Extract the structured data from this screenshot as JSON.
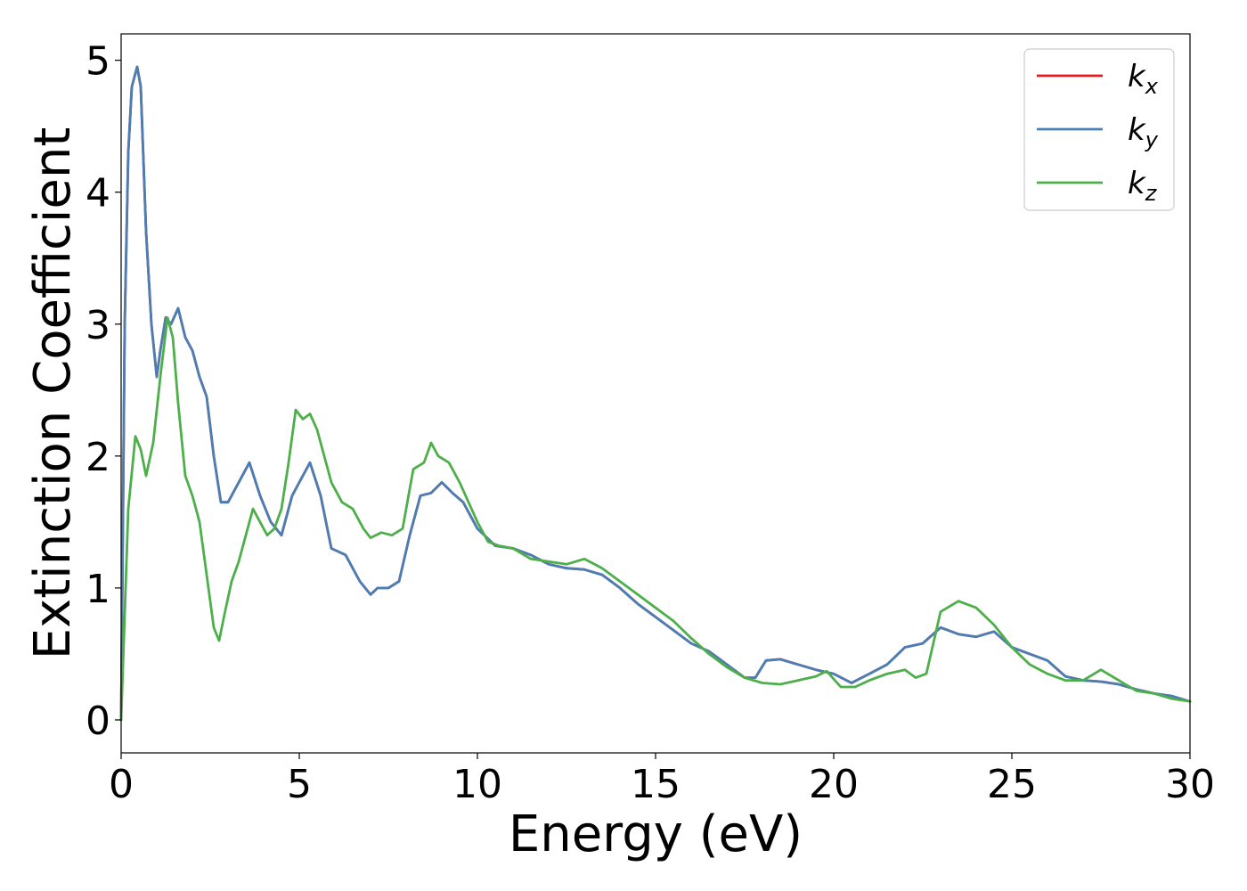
{
  "chart_data": {
    "type": "line",
    "xlabel": "Energy (eV)",
    "ylabel": "Extinction Coefficient",
    "xlim": [
      0,
      30
    ],
    "ylim": [
      -0.25,
      5.2
    ],
    "xticks": [
      0,
      5,
      10,
      15,
      20,
      25,
      30
    ],
    "xtick_labels": [
      "0",
      "5",
      "10",
      "15",
      "20",
      "25",
      "30"
    ],
    "yticks": [
      0,
      1,
      2,
      3,
      4,
      5
    ],
    "ytick_labels": [
      "0",
      "1",
      "2",
      "3",
      "4",
      "5"
    ],
    "grid": false,
    "legend": "top-right",
    "series": [
      {
        "name": "k_x",
        "label_main": "k",
        "label_sub": "x",
        "color": "#e41a1c",
        "x": [
          0,
          0.1,
          0.2,
          0.3,
          0.45,
          0.55,
          0.7,
          0.85,
          1.0,
          1.1,
          1.25,
          1.4,
          1.6,
          1.8,
          2.0,
          2.2,
          2.4,
          2.6,
          2.8,
          3.0,
          3.3,
          3.6,
          3.9,
          4.2,
          4.5,
          4.8,
          5.0,
          5.3,
          5.6,
          5.9,
          6.3,
          6.7,
          7.0,
          7.2,
          7.5,
          7.8,
          8.1,
          8.4,
          8.7,
          9.0,
          9.3,
          9.6,
          10.0,
          10.5,
          11.0,
          11.5,
          12.0,
          12.5,
          13.0,
          13.5,
          14.0,
          14.5,
          15.0,
          15.5,
          16.0,
          16.5,
          17.0,
          17.5,
          17.8,
          18.1,
          18.5,
          19.0,
          19.5,
          20.0,
          20.5,
          21.0,
          21.5,
          22.0,
          22.5,
          23.0,
          23.5,
          24.0,
          24.5,
          25.0,
          25.5,
          26.0,
          26.5,
          27.0,
          27.5,
          28.0,
          28.5,
          29.0,
          29.5,
          30.0
        ],
        "values": [
          0.0,
          3.0,
          4.3,
          4.8,
          4.95,
          4.8,
          3.7,
          3.0,
          2.6,
          2.8,
          3.05,
          3.0,
          3.12,
          2.9,
          2.8,
          2.6,
          2.45,
          2.0,
          1.65,
          1.65,
          1.8,
          1.95,
          1.7,
          1.5,
          1.4,
          1.7,
          1.8,
          1.95,
          1.7,
          1.3,
          1.25,
          1.05,
          0.95,
          1.0,
          1.0,
          1.05,
          1.4,
          1.7,
          1.72,
          1.8,
          1.72,
          1.65,
          1.45,
          1.32,
          1.3,
          1.25,
          1.18,
          1.15,
          1.14,
          1.1,
          1.0,
          0.88,
          0.78,
          0.68,
          0.58,
          0.52,
          0.42,
          0.32,
          0.32,
          0.45,
          0.46,
          0.42,
          0.38,
          0.35,
          0.28,
          0.35,
          0.42,
          0.55,
          0.58,
          0.7,
          0.65,
          0.63,
          0.67,
          0.55,
          0.5,
          0.45,
          0.33,
          0.3,
          0.29,
          0.27,
          0.23,
          0.2,
          0.18,
          0.14
        ]
      },
      {
        "name": "k_y",
        "label_main": "k",
        "label_sub": "y",
        "color": "#4a7fb5",
        "x": [
          0,
          0.1,
          0.2,
          0.3,
          0.45,
          0.55,
          0.7,
          0.85,
          1.0,
          1.1,
          1.25,
          1.4,
          1.6,
          1.8,
          2.0,
          2.2,
          2.4,
          2.6,
          2.8,
          3.0,
          3.3,
          3.6,
          3.9,
          4.2,
          4.5,
          4.8,
          5.0,
          5.3,
          5.6,
          5.9,
          6.3,
          6.7,
          7.0,
          7.2,
          7.5,
          7.8,
          8.1,
          8.4,
          8.7,
          9.0,
          9.3,
          9.6,
          10.0,
          10.5,
          11.0,
          11.5,
          12.0,
          12.5,
          13.0,
          13.5,
          14.0,
          14.5,
          15.0,
          15.5,
          16.0,
          16.5,
          17.0,
          17.5,
          17.8,
          18.1,
          18.5,
          19.0,
          19.5,
          20.0,
          20.5,
          21.0,
          21.5,
          22.0,
          22.5,
          23.0,
          23.5,
          24.0,
          24.5,
          25.0,
          25.5,
          26.0,
          26.5,
          27.0,
          27.5,
          28.0,
          28.5,
          29.0,
          29.5,
          30.0
        ],
        "values": [
          0.0,
          3.0,
          4.3,
          4.8,
          4.95,
          4.8,
          3.7,
          3.0,
          2.6,
          2.8,
          3.05,
          3.0,
          3.12,
          2.9,
          2.8,
          2.6,
          2.45,
          2.0,
          1.65,
          1.65,
          1.8,
          1.95,
          1.7,
          1.5,
          1.4,
          1.7,
          1.8,
          1.95,
          1.7,
          1.3,
          1.25,
          1.05,
          0.95,
          1.0,
          1.0,
          1.05,
          1.4,
          1.7,
          1.72,
          1.8,
          1.72,
          1.65,
          1.45,
          1.32,
          1.3,
          1.25,
          1.18,
          1.15,
          1.14,
          1.1,
          1.0,
          0.88,
          0.78,
          0.68,
          0.58,
          0.52,
          0.42,
          0.32,
          0.32,
          0.45,
          0.46,
          0.42,
          0.38,
          0.35,
          0.28,
          0.35,
          0.42,
          0.55,
          0.58,
          0.7,
          0.65,
          0.63,
          0.67,
          0.55,
          0.5,
          0.45,
          0.33,
          0.3,
          0.29,
          0.27,
          0.23,
          0.2,
          0.18,
          0.14
        ]
      },
      {
        "name": "k_z",
        "label_main": "k",
        "label_sub": "z",
        "color": "#4daf4a",
        "x": [
          0,
          0.2,
          0.4,
          0.55,
          0.7,
          0.9,
          1.1,
          1.3,
          1.45,
          1.6,
          1.8,
          2.0,
          2.2,
          2.4,
          2.6,
          2.75,
          2.9,
          3.1,
          3.3,
          3.5,
          3.7,
          3.9,
          4.1,
          4.3,
          4.5,
          4.7,
          4.9,
          5.1,
          5.3,
          5.5,
          5.7,
          5.9,
          6.2,
          6.5,
          6.8,
          7.0,
          7.3,
          7.6,
          7.9,
          8.2,
          8.5,
          8.7,
          8.9,
          9.2,
          9.5,
          9.8,
          10.0,
          10.3,
          10.6,
          11.0,
          11.5,
          12.0,
          12.5,
          13.0,
          13.5,
          14.0,
          14.5,
          15.0,
          15.5,
          16.0,
          16.5,
          17.0,
          17.5,
          18.0,
          18.5,
          19.0,
          19.5,
          19.8,
          20.2,
          20.6,
          21.0,
          21.5,
          22.0,
          22.3,
          22.6,
          23.0,
          23.5,
          24.0,
          24.5,
          25.0,
          25.5,
          26.0,
          26.5,
          27.0,
          27.5,
          28.0,
          28.5,
          29.0,
          29.5,
          30.0
        ],
        "values": [
          0.0,
          1.6,
          2.15,
          2.05,
          1.85,
          2.1,
          2.6,
          3.05,
          2.9,
          2.4,
          1.85,
          1.7,
          1.5,
          1.1,
          0.7,
          0.6,
          0.8,
          1.05,
          1.2,
          1.4,
          1.6,
          1.5,
          1.4,
          1.45,
          1.6,
          1.95,
          2.35,
          2.28,
          2.32,
          2.2,
          2.0,
          1.8,
          1.65,
          1.6,
          1.45,
          1.38,
          1.42,
          1.4,
          1.45,
          1.9,
          1.95,
          2.1,
          2.0,
          1.95,
          1.8,
          1.62,
          1.5,
          1.35,
          1.32,
          1.3,
          1.22,
          1.2,
          1.18,
          1.22,
          1.15,
          1.05,
          0.95,
          0.85,
          0.75,
          0.62,
          0.5,
          0.4,
          0.32,
          0.28,
          0.27,
          0.3,
          0.33,
          0.37,
          0.25,
          0.25,
          0.3,
          0.35,
          0.38,
          0.32,
          0.35,
          0.82,
          0.9,
          0.85,
          0.72,
          0.55,
          0.42,
          0.35,
          0.3,
          0.3,
          0.38,
          0.3,
          0.22,
          0.2,
          0.16,
          0.14
        ]
      }
    ]
  }
}
